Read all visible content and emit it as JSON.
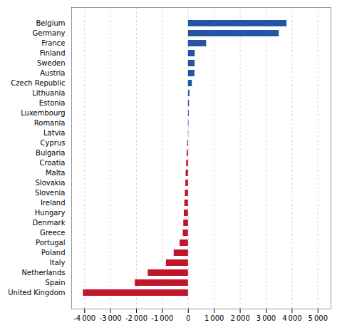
{
  "chart_data": {
    "type": "bar",
    "orientation": "horizontal",
    "categories": [
      "Belgium",
      "Germany",
      "France",
      "Finland",
      "Sweden",
      "Austria",
      "Czech Republic",
      "Lithuania",
      "Estonia",
      "Luxembourg",
      "Romania",
      "Latvia",
      "Cyprus",
      "Bulgaria",
      "Croatia",
      "Malta",
      "Slovakia",
      "Slovenia",
      "Ireland",
      "Hungary",
      "Denmark",
      "Greece",
      "Portugal",
      "Poland",
      "Italy",
      "Netherlands",
      "Spain",
      "United Kingdom"
    ],
    "values": [
      3800,
      3500,
      700,
      260,
      255,
      250,
      150,
      55,
      40,
      30,
      20,
      10,
      -30,
      -50,
      -70,
      -90,
      -100,
      -120,
      -140,
      -160,
      -180,
      -200,
      -320,
      -550,
      -850,
      -1550,
      -2050,
      -4050
    ],
    "colors": [
      "#2255a4",
      "#2255a4",
      "#2255a4",
      "#2255a4",
      "#2255a4",
      "#2255a4",
      "#2255a4",
      "#2255a4",
      "#2255a4",
      "#2255a4",
      "#2255a4",
      "#2255a4",
      "#c0152a",
      "#c0152a",
      "#c0152a",
      "#c0152a",
      "#c0152a",
      "#c0152a",
      "#c0152a",
      "#c0152a",
      "#c0152a",
      "#c0152a",
      "#c0152a",
      "#c0152a",
      "#c0152a",
      "#c0152a",
      "#c0152a",
      "#c0152a"
    ],
    "xlim": [
      -4500,
      5500
    ],
    "xticks": [
      {
        "value": -4000,
        "label": "-4 000"
      },
      {
        "value": -3000,
        "label": "-3 000"
      },
      {
        "value": -2000,
        "label": "-2 000"
      },
      {
        "value": -1000,
        "label": "-1 000"
      },
      0,
      {
        "value": 1000,
        "label": "1 000"
      },
      {
        "value": 2000,
        "label": "2 000"
      },
      {
        "value": 3000,
        "label": "3 000"
      },
      {
        "value": 4000,
        "label": "4 000"
      },
      {
        "value": 5000,
        "label": "5 000"
      }
    ],
    "grid": true
  }
}
